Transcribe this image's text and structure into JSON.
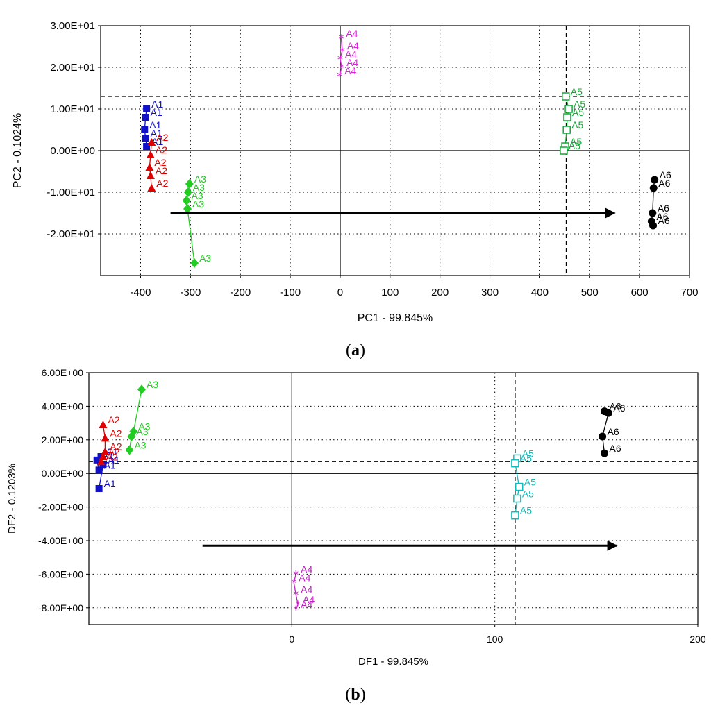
{
  "captions": {
    "a_letter": "a",
    "b_letter": "b"
  },
  "colors": {
    "A1": "#1010c8",
    "A2": "#e00000",
    "A3": "#22cc22",
    "A4": "#e020e0",
    "A4b": "#c020c0",
    "A5": "#11aa33",
    "A5b": "#11bbbb",
    "A6": "#000000",
    "arrow": "#000000",
    "grid": "#000000",
    "axis_text": "#000000"
  },
  "chart_data": [
    {
      "type": "scatter",
      "title": "",
      "xlabel": "PC1 - 99.845%",
      "ylabel": "PC2 - 0.1024%",
      "xlim": [
        -480,
        700
      ],
      "ylim": [
        -30,
        30
      ],
      "x_ticks": [
        -400,
        -300,
        -200,
        -100,
        0,
        100,
        200,
        300,
        400,
        500,
        600,
        700
      ],
      "x_tick_labels": [
        "-400",
        "-300",
        "-200",
        "-100",
        "0",
        "100",
        "200",
        "300",
        "400",
        "500",
        "600",
        "700"
      ],
      "y_ticks": [
        30,
        20,
        10,
        0,
        -10,
        -20
      ],
      "y_tick_labels": [
        "3.00E+01",
        "2.00E+01",
        "1.00E+01",
        "0.00E+00",
        "-1.00E+01",
        "-2.00E+01"
      ],
      "grid_x": [
        -400,
        -300,
        -200,
        -100,
        100,
        200,
        300,
        400,
        500,
        600
      ],
      "grid_y": [
        20,
        10,
        -10,
        -20
      ],
      "dashed_x": [
        453
      ],
      "dashed_y": [
        13
      ],
      "arrow": {
        "from": [
          -340,
          -15
        ],
        "to": [
          550,
          -15
        ]
      },
      "series": [
        {
          "name": "A1",
          "label": "A1",
          "marker": "square",
          "colorKey": "A1",
          "points": [
            [
              -388,
              10
            ],
            [
              -390,
              8
            ],
            [
              -392,
              5
            ],
            [
              -390,
              3
            ],
            [
              -388,
              1
            ]
          ]
        },
        {
          "name": "A2",
          "label": "A2",
          "marker": "triangle",
          "colorKey": "A2",
          "points": [
            [
              -378,
              2
            ],
            [
              -380,
              -1
            ],
            [
              -382,
              -4
            ],
            [
              -380,
              -6
            ],
            [
              -378,
              -9
            ]
          ]
        },
        {
          "name": "A3",
          "label": "A3",
          "marker": "diamond",
          "colorKey": "A3",
          "points": [
            [
              -302,
              -8
            ],
            [
              -305,
              -10
            ],
            [
              -308,
              -12
            ],
            [
              -306,
              -14
            ],
            [
              -292,
              -27
            ]
          ]
        },
        {
          "name": "A4",
          "label": "A4",
          "marker": "star",
          "colorKey": "A4",
          "points": [
            [
              2,
              27
            ],
            [
              4,
              24
            ],
            [
              0,
              22
            ],
            [
              3,
              20
            ],
            [
              -1,
              18
            ]
          ]
        },
        {
          "name": "A5",
          "label": "A5",
          "marker": "open-square",
          "colorKey": "A5",
          "points": [
            [
              452,
              13
            ],
            [
              458,
              10
            ],
            [
              455,
              8
            ],
            [
              454,
              5
            ],
            [
              451,
              1
            ],
            [
              448,
              0
            ]
          ]
        },
        {
          "name": "A6",
          "label": "A6",
          "marker": "circle",
          "colorKey": "A6",
          "points": [
            [
              630,
              -7
            ],
            [
              628,
              -9
            ],
            [
              626,
              -15
            ],
            [
              624,
              -17
            ],
            [
              627,
              -18
            ]
          ]
        }
      ]
    },
    {
      "type": "scatter",
      "title": "",
      "xlabel": "DF1 - 99.845%",
      "ylabel": "DF2 - 0.1203%",
      "xlim": [
        -100,
        200
      ],
      "ylim": [
        -9,
        6
      ],
      "x_ticks": [
        0,
        100,
        200
      ],
      "x_tick_labels": [
        "0",
        "100",
        "200"
      ],
      "y_ticks": [
        6,
        4,
        2,
        0,
        -2,
        -4,
        -6,
        -8
      ],
      "y_tick_labels": [
        "6.00E+00",
        "4.00E+00",
        "2.00E+00",
        "0.00E+00",
        "-2.00E+00",
        "-4.00E+00",
        "-6.00E+00",
        "-8.00E+00"
      ],
      "grid_x": [
        100
      ],
      "grid_y": [
        4,
        2,
        -2,
        -4,
        -6,
        -8
      ],
      "dashed_x": [
        110
      ],
      "dashed_y": [
        0.7
      ],
      "arrow": {
        "from": [
          -44,
          -4.3
        ],
        "to": [
          160,
          -4.3
        ]
      },
      "series": [
        {
          "name": "A1",
          "label": "A1",
          "marker": "square",
          "colorKey": "A1",
          "points": [
            [
              -94,
              1
            ],
            [
              -96,
              0.8
            ],
            [
              -95,
              0.2
            ],
            [
              -93,
              0.5
            ],
            [
              -95,
              -0.9
            ]
          ]
        },
        {
          "name": "A2",
          "label": "A2",
          "marker": "triangle",
          "colorKey": "A2",
          "points": [
            [
              -93,
              2.9
            ],
            [
              -92,
              2.1
            ],
            [
              -92,
              1.3
            ],
            [
              -93,
              1.0
            ],
            [
              -94,
              0.7
            ]
          ]
        },
        {
          "name": "A3",
          "label": "A3",
          "marker": "diamond",
          "colorKey": "A3",
          "points": [
            [
              -74,
              5
            ],
            [
              -78,
              2.5
            ],
            [
              -79,
              2.2
            ],
            [
              -80,
              1.4
            ]
          ]
        },
        {
          "name": "A4",
          "label": "A4",
          "marker": "star",
          "colorKey": "A4b",
          "points": [
            [
              2,
              -6
            ],
            [
              1,
              -6.5
            ],
            [
              2,
              -7.2
            ],
            [
              3,
              -7.8
            ],
            [
              2,
              -8.1
            ]
          ]
        },
        {
          "name": "A5",
          "label": "A5",
          "marker": "open-square",
          "colorKey": "A5b",
          "points": [
            [
              111,
              0.9
            ],
            [
              110,
              0.6
            ],
            [
              112,
              -0.8
            ],
            [
              111,
              -1.5
            ],
            [
              110,
              -2.5
            ]
          ]
        },
        {
          "name": "A6",
          "label": "A6",
          "marker": "circle",
          "colorKey": "A6",
          "points": [
            [
              154,
              3.7
            ],
            [
              156,
              3.6
            ],
            [
              153,
              2.2
            ],
            [
              154,
              1.2
            ]
          ]
        }
      ]
    }
  ]
}
